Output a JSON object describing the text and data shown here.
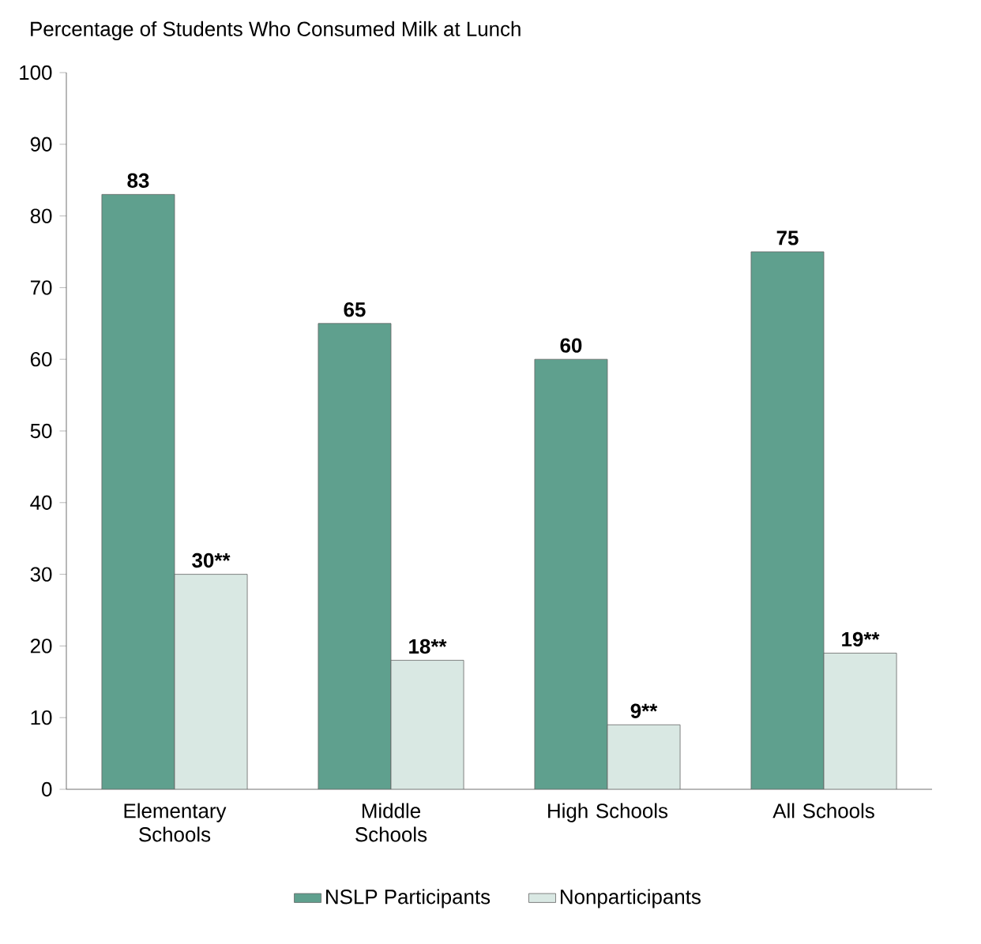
{
  "chart_data": {
    "type": "bar",
    "title": "Percentage of Students Who Consumed Milk at Lunch",
    "categories": [
      "Elementary Schools",
      "Middle Schools",
      "High Schools",
      "All Schools"
    ],
    "series": [
      {
        "name": "NSLP Participants",
        "color": "#5fa08e",
        "values": [
          83,
          65,
          60,
          75
        ],
        "value_labels": [
          "83",
          "65",
          "60",
          "75"
        ]
      },
      {
        "name": "Nonparticipants",
        "color": "#d9e8e3",
        "values": [
          30,
          18,
          9,
          19
        ],
        "value_labels": [
          "30**",
          "18**",
          "9**",
          "19**"
        ]
      }
    ],
    "ylim": [
      0,
      100
    ],
    "yticks": [
      0,
      10,
      20,
      30,
      40,
      50,
      60,
      70,
      80,
      90,
      100
    ],
    "legend": "bottom",
    "grid": false
  }
}
